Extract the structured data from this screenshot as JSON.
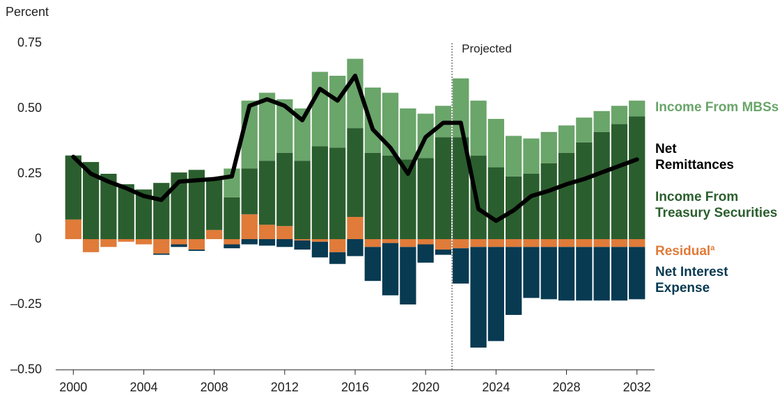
{
  "chart_data": {
    "type": "bar",
    "y_label": "Percent",
    "x": [
      2000,
      2001,
      2002,
      2003,
      2004,
      2005,
      2006,
      2007,
      2008,
      2009,
      2010,
      2011,
      2012,
      2013,
      2014,
      2015,
      2016,
      2017,
      2018,
      2019,
      2020,
      2021,
      2022,
      2023,
      2024,
      2025,
      2026,
      2027,
      2028,
      2029,
      2030,
      2031,
      2032
    ],
    "xlim": [
      1999,
      2033
    ],
    "xticks": [
      2000,
      2004,
      2008,
      2012,
      2016,
      2020,
      2024,
      2028,
      2032
    ],
    "ylim": [
      -0.5,
      0.75
    ],
    "yticks": [
      {
        "value": -0.5,
        "label": "–0.50"
      },
      {
        "value": -0.25,
        "label": "–0.25"
      },
      0,
      {
        "value": 0.25,
        "label": "0.25"
      },
      {
        "value": 0.5,
        "label": "0.50"
      },
      {
        "value": 0.75,
        "label": "0.75"
      }
    ],
    "grid": false,
    "stacked": true,
    "annotations": [
      {
        "text": "Projected",
        "x": 2021.5
      }
    ],
    "series": [
      {
        "name": "Residual",
        "footnote_marker": "a",
        "color": "#e07b39",
        "type": "bar",
        "values": [
          0.075,
          -0.05,
          -0.03,
          -0.01,
          -0.02,
          -0.055,
          -0.02,
          -0.04,
          0.035,
          -0.02,
          0.095,
          0.055,
          0.05,
          -0.005,
          -0.01,
          -0.05,
          0.085,
          -0.03,
          -0.015,
          -0.03,
          -0.02,
          -0.04,
          -0.035,
          -0.03,
          -0.03,
          -0.03,
          -0.03,
          -0.03,
          -0.03,
          -0.03,
          -0.03,
          -0.03,
          -0.03
        ]
      },
      {
        "name": "Income From Treasury Securities",
        "color": "#2b5e2e",
        "type": "bar",
        "values": [
          0.245,
          0.295,
          0.25,
          0.21,
          0.19,
          0.215,
          0.255,
          0.265,
          0.2,
          0.16,
          0.175,
          0.245,
          0.28,
          0.3,
          0.355,
          0.35,
          0.34,
          0.33,
          0.32,
          0.305,
          0.31,
          0.39,
          0.39,
          0.32,
          0.275,
          0.24,
          0.25,
          0.29,
          0.33,
          0.37,
          0.41,
          0.44,
          0.47
        ]
      },
      {
        "name": "Income From MBSs",
        "color": "#6aa56a",
        "type": "bar",
        "values": [
          0,
          0,
          0,
          0,
          0,
          0,
          0,
          0,
          0,
          0.11,
          0.26,
          0.26,
          0.205,
          0.2,
          0.285,
          0.275,
          0.265,
          0.25,
          0.24,
          0.195,
          0.17,
          0.12,
          0.225,
          0.21,
          0.185,
          0.155,
          0.135,
          0.12,
          0.105,
          0.095,
          0.08,
          0.07,
          0.06
        ]
      },
      {
        "name": "Net Interest Expense",
        "color": "#083a52",
        "type": "bar",
        "values": [
          0,
          0,
          0,
          0,
          0,
          -0.005,
          -0.01,
          -0.005,
          0,
          -0.015,
          -0.02,
          -0.025,
          -0.03,
          -0.035,
          -0.06,
          -0.045,
          -0.065,
          -0.13,
          -0.2,
          -0.22,
          -0.07,
          -0.02,
          -0.135,
          -0.385,
          -0.36,
          -0.26,
          -0.195,
          -0.2,
          -0.205,
          -0.205,
          -0.205,
          -0.205,
          -0.2
        ]
      },
      {
        "name": "Net Remittances",
        "color": "#000000",
        "type": "line",
        "values": [
          0.315,
          0.25,
          0.22,
          0.195,
          0.165,
          0.15,
          0.22,
          0.225,
          0.23,
          0.24,
          0.51,
          0.535,
          0.51,
          0.455,
          0.575,
          0.53,
          0.625,
          0.42,
          0.35,
          0.25,
          0.39,
          0.445,
          0.445,
          0.115,
          0.07,
          0.11,
          0.165,
          0.185,
          0.21,
          0.23,
          0.255,
          0.28,
          0.305
        ]
      }
    ]
  }
}
